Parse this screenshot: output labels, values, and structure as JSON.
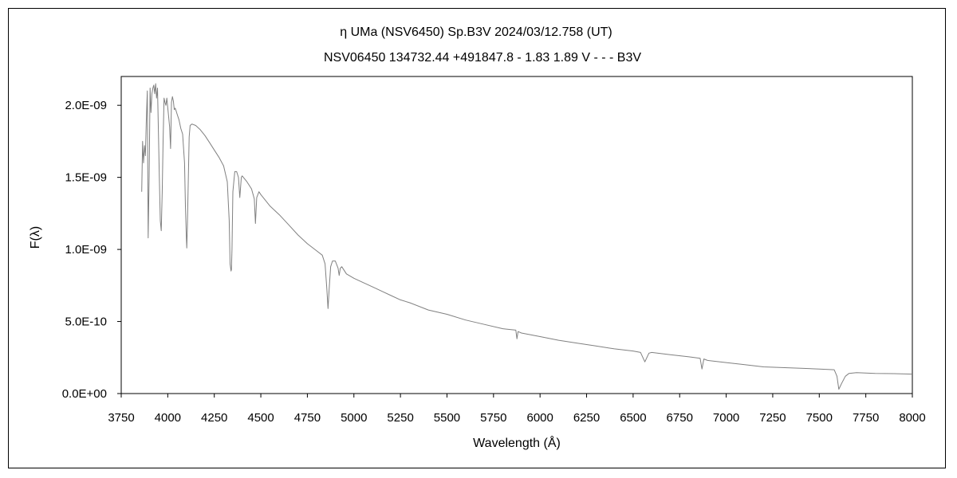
{
  "chart_data": {
    "type": "line",
    "title_line1": "η UMa (NSV6450)  Sp.B3V  2024/03/12.758 (UT)",
    "title_line2": "NSV06450 134732.44 +491847.8 - 1.83 1.89 V - - - B3V",
    "xlabel": "Wavelength (Å)",
    "ylabel": "F(λ)",
    "xlim": [
      3750,
      8000
    ],
    "ylim": [
      0,
      2.2e-09
    ],
    "x_ticks": [
      3750,
      4000,
      4250,
      4500,
      4750,
      5000,
      5250,
      5500,
      5750,
      6000,
      6250,
      6500,
      6750,
      7000,
      7250,
      7500,
      7750,
      8000
    ],
    "x_tick_labels": [
      "3750",
      "4000",
      "4250",
      "4500",
      "4750",
      "5000",
      "5250",
      "5500",
      "5750",
      "6000",
      "6250",
      "6500",
      "6750",
      "7000",
      "7250",
      "7500",
      "7750",
      "8000"
    ],
    "y_ticks": [
      0,
      5e-10,
      1e-09,
      1.5e-09,
      2e-09
    ],
    "y_tick_labels": [
      "0.0E+00",
      "5.0E-10",
      "1.0E-09",
      "1.5E-09",
      "2.0E-09"
    ],
    "grid": false,
    "line_color": "#808080",
    "series": [
      {
        "x": [
          3860,
          3865,
          3870,
          3875,
          3880,
          3885,
          3890,
          3895,
          3900,
          3905,
          3910,
          3915,
          3920,
          3925,
          3930,
          3935,
          3940,
          3945,
          3950,
          3955,
          3960,
          3965,
          3970,
          3975,
          3980,
          3985,
          3990,
          3995,
          4000,
          4005,
          4010,
          4015,
          4020,
          4025,
          4030,
          4035,
          4040,
          4045,
          4050,
          4060,
          4070,
          4080,
          4090,
          4095,
          4100,
          4102,
          4105,
          4110,
          4115,
          4120,
          4130,
          4150,
          4175,
          4200,
          4225,
          4250,
          4275,
          4300,
          4320,
          4330,
          4335,
          4340,
          4342,
          4345,
          4350,
          4360,
          4370,
          4380,
          4387,
          4395,
          4400,
          4425,
          4450,
          4465,
          4471,
          4478,
          4490,
          4500,
          4550,
          4600,
          4650,
          4700,
          4750,
          4800,
          4830,
          4845,
          4855,
          4861,
          4867,
          4875,
          4885,
          4900,
          4915,
          4921,
          4927,
          4935,
          4960,
          5000,
          5050,
          5100,
          5150,
          5200,
          5250,
          5300,
          5400,
          5500,
          5600,
          5700,
          5800,
          5870,
          5876,
          5882,
          5900,
          6000,
          6100,
          6200,
          6300,
          6400,
          6500,
          6540,
          6563,
          6585,
          6600,
          6700,
          6800,
          6860,
          6870,
          6880,
          6900,
          7000,
          7100,
          7200,
          7300,
          7400,
          7500,
          7580,
          7595,
          7605,
          7620,
          7640,
          7660,
          7700,
          7800,
          7900,
          8000
        ],
        "y": [
          1.4e-09,
          1.75e-09,
          1.6e-09,
          1.72e-09,
          1.65e-09,
          1.9e-09,
          2.1e-09,
          1.08e-09,
          1.5e-09,
          2.12e-09,
          1.95e-09,
          2.08e-09,
          2.12e-09,
          2.14e-09,
          2.08e-09,
          2.15e-09,
          2.05e-09,
          2.12e-09,
          1.8e-09,
          1.5e-09,
          1.2e-09,
          1.13e-09,
          1.4e-09,
          1.75e-09,
          2.05e-09,
          2.02e-09,
          2e-09,
          2.05e-09,
          1.98e-09,
          1.92e-09,
          1.85e-09,
          1.7e-09,
          2.02e-09,
          2.06e-09,
          2.03e-09,
          1.97e-09,
          1.98e-09,
          1.96e-09,
          1.94e-09,
          1.9e-09,
          1.84e-09,
          1.8e-09,
          1.6e-09,
          1.3e-09,
          1.08e-09,
          1.01e-09,
          1.15e-09,
          1.45e-09,
          1.78e-09,
          1.86e-09,
          1.87e-09,
          1.86e-09,
          1.83e-09,
          1.79e-09,
          1.74e-09,
          1.69e-09,
          1.64e-09,
          1.58e-09,
          1.47e-09,
          1.2e-09,
          9e-10,
          8.5e-10,
          8.6e-10,
          1e-09,
          1.4e-09,
          1.54e-09,
          1.54e-09,
          1.5e-09,
          1.36e-09,
          1.5e-09,
          1.51e-09,
          1.47e-09,
          1.42e-09,
          1.35e-09,
          1.18e-09,
          1.36e-09,
          1.4e-09,
          1.38e-09,
          1.3e-09,
          1.24e-09,
          1.17e-09,
          1.1e-09,
          1.04e-09,
          9.9e-10,
          9.6e-10,
          9e-10,
          7.2e-10,
          5.9e-10,
          7.2e-10,
          8.8e-10,
          9.2e-10,
          9.2e-10,
          8.7e-10,
          8.2e-10,
          8.7e-10,
          8.8e-10,
          8.3e-10,
          8e-10,
          7.7e-10,
          7.4e-10,
          7.1e-10,
          6.8e-10,
          6.5e-10,
          6.3e-10,
          5.8e-10,
          5.5e-10,
          5.1e-10,
          4.8e-10,
          4.5e-10,
          4.4e-10,
          3.8e-10,
          4.3e-10,
          4.2e-10,
          3.95e-10,
          3.7e-10,
          3.5e-10,
          3.3e-10,
          3.1e-10,
          2.95e-10,
          2.85e-10,
          2.2e-10,
          2.8e-10,
          2.85e-10,
          2.7e-10,
          2.55e-10,
          2.45e-10,
          1.7e-10,
          2.4e-10,
          2.3e-10,
          2.15e-10,
          2e-10,
          1.85e-10,
          1.8e-10,
          1.75e-10,
          1.7e-10,
          1.65e-10,
          1.2e-10,
          3e-11,
          7e-11,
          1.2e-10,
          1.4e-10,
          1.45e-10,
          1.4e-10,
          1.38e-10,
          1.35e-10
        ]
      }
    ]
  }
}
